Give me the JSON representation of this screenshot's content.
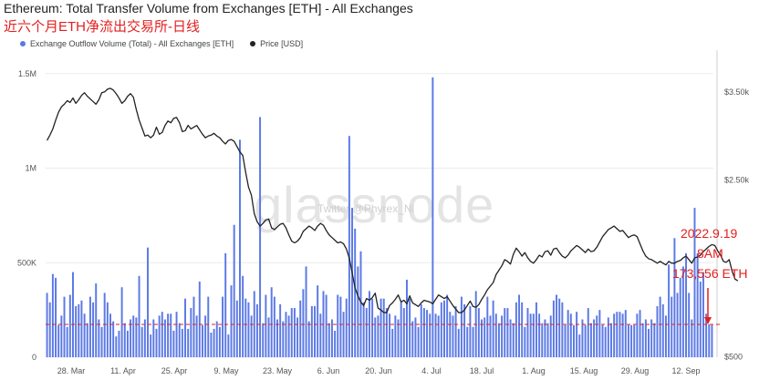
{
  "title": "Ethereum: Total Transfer Volume from Exchanges [ETH] - All Exchanges",
  "subtitle": "近六个月ETH净流出交易所-日线",
  "legend": {
    "series1": "Exchange Outflow Volume (Total) - All Exchanges [ETH]",
    "series2": "Price [USD]"
  },
  "watermark": "glassnode",
  "watermark_handle": "Twitter @Phyrex_Ni",
  "annotation": {
    "date": "2022.9.19",
    "time": "8AM",
    "value": "173,556 ETH"
  },
  "colors": {
    "bars": "#5b79e6",
    "price": "#222222",
    "annotation": "#e41e1e"
  },
  "chart_data": {
    "type": "bar",
    "x_axis": {
      "ticks": [
        "28. Mar",
        "11. Apr",
        "25. Apr",
        "9. May",
        "23. May",
        "6. Jun",
        "20. Jun",
        "4. Jul",
        "18. Jul",
        "1. Aug",
        "15. Aug",
        "29. Aug",
        "12. Sep"
      ]
    },
    "y_left": {
      "ticks": [
        "0",
        "500K",
        "1M",
        "1.5M"
      ],
      "range": [
        0,
        1600000
      ]
    },
    "y_right": {
      "ticks": [
        "$500",
        "$2.50k",
        "$3.50k"
      ]
    },
    "reference_line": {
      "value": 173556,
      "style": "dashed",
      "color": "#e41e1e"
    },
    "series": [
      {
        "name": "Exchange Outflow Volume (Total) - All Exchanges [ETH]",
        "type": "bar",
        "axis": "left",
        "values": [
          340000,
          290000,
          440000,
          420000,
          170000,
          220000,
          320000,
          160000,
          330000,
          450000,
          270000,
          280000,
          300000,
          230000,
          180000,
          320000,
          290000,
          390000,
          200000,
          160000,
          340000,
          290000,
          230000,
          190000,
          110000,
          140000,
          370000,
          180000,
          140000,
          200000,
          220000,
          210000,
          430000,
          160000,
          200000,
          580000,
          120000,
          200000,
          150000,
          220000,
          240000,
          200000,
          230000,
          230000,
          140000,
          240000,
          180000,
          150000,
          310000,
          150000,
          260000,
          320000,
          220000,
          400000,
          170000,
          220000,
          320000,
          130000,
          150000,
          190000,
          160000,
          320000,
          550000,
          120000,
          380000,
          700000,
          300000,
          1150000,
          430000,
          310000,
          290000,
          220000,
          350000,
          280000,
          1270000,
          180000,
          330000,
          210000,
          370000,
          320000,
          200000,
          280000,
          190000,
          240000,
          220000,
          260000,
          260000,
          210000,
          300000,
          360000,
          480000,
          190000,
          270000,
          270000,
          380000,
          230000,
          350000,
          330000,
          180000,
          200000,
          140000,
          330000,
          320000,
          240000,
          310000,
          1170000,
          790000,
          680000,
          480000,
          560000,
          290000,
          260000,
          350000,
          310000,
          210000,
          220000,
          310000,
          310000,
          260000,
          230000,
          150000,
          220000,
          200000,
          290000,
          260000,
          410000,
          310000,
          190000,
          210000,
          160000,
          280000,
          260000,
          250000,
          230000,
          1480000,
          230000,
          220000,
          290000,
          300000,
          330000,
          240000,
          220000,
          270000,
          150000,
          320000,
          280000,
          160000,
          270000,
          160000,
          350000,
          260000,
          200000,
          210000,
          320000,
          220000,
          300000,
          230000,
          180000,
          220000,
          260000,
          260000,
          200000,
          180000,
          290000,
          330000,
          290000,
          160000,
          260000,
          230000,
          230000,
          290000,
          230000,
          180000,
          200000,
          180000,
          220000,
          300000,
          330000,
          310000,
          290000,
          170000,
          250000,
          230000,
          170000,
          240000,
          120000,
          200000,
          170000,
          260000,
          180000,
          200000,
          220000,
          250000,
          170000,
          160000,
          210000,
          180000,
          230000,
          240000,
          240000,
          230000,
          250000,
          170000,
          170000,
          170000,
          230000,
          250000,
          180000,
          200000,
          150000,
          200000,
          180000,
          270000,
          320000,
          280000,
          220000,
          490000,
          320000,
          630000,
          340000,
          420000,
          480000,
          550000,
          340000,
          200000,
          790000,
          550000,
          400000,
          450000,
          230000,
          173556,
          170000
        ]
      },
      {
        "name": "Price [USD]",
        "type": "line",
        "axis": "right",
        "values": [
          2950,
          3010,
          3080,
          3180,
          3270,
          3330,
          3360,
          3400,
          3380,
          3430,
          3370,
          3410,
          3460,
          3490,
          3450,
          3420,
          3390,
          3360,
          3410,
          3490,
          3500,
          3530,
          3540,
          3520,
          3480,
          3430,
          3370,
          3400,
          3450,
          3480,
          3440,
          3300,
          3180,
          3090,
          3000,
          3010,
          2980,
          3010,
          3100,
          3020,
          3040,
          3120,
          3170,
          3150,
          3200,
          3210,
          3150,
          3050,
          3060,
          3120,
          3080,
          3100,
          3120,
          3070,
          3020,
          2980,
          3000,
          3010,
          3030,
          3000,
          2980,
          2940,
          2910,
          2950,
          2960,
          2940,
          2880,
          2820,
          2780,
          2590,
          2420,
          2330,
          2120,
          2030,
          1980,
          2010,
          2050,
          2060,
          1960,
          1940,
          1970,
          2000,
          2010,
          1960,
          1880,
          1810,
          1790,
          1810,
          1850,
          1920,
          1950,
          1980,
          1960,
          1930,
          1980,
          2010,
          1990,
          1930,
          1880,
          1850,
          1820,
          1790,
          1800,
          1780,
          1720,
          1620,
          1450,
          1280,
          1190,
          1120,
          1080,
          1160,
          1140,
          1170,
          1220,
          1050,
          1030,
          1000,
          1000,
          1080,
          1110,
          1150,
          1200,
          1120,
          1140,
          1100,
          1190,
          1110,
          1090,
          1070,
          1110,
          1140,
          1130,
          1120,
          1100,
          1150,
          1200,
          1180,
          1160,
          1180,
          1130,
          1080,
          1040,
          1000,
          1000,
          1030,
          1080,
          1130,
          1070,
          1060,
          1090,
          1150,
          1200,
          1260,
          1300,
          1340,
          1430,
          1480,
          1530,
          1600,
          1580,
          1550,
          1660,
          1730,
          1690,
          1640,
          1680,
          1620,
          1580,
          1560,
          1600,
          1650,
          1630,
          1690,
          1700,
          1650,
          1720,
          1730,
          1680,
          1640,
          1620,
          1650,
          1700,
          1730,
          1760,
          1740,
          1710,
          1680,
          1720,
          1690,
          1700,
          1740,
          1800,
          1860,
          1900,
          1940,
          1960,
          1980,
          1950,
          1920,
          1930,
          1890,
          1850,
          1870,
          1880,
          1860,
          1780,
          1700,
          1640,
          1610,
          1600,
          1580,
          1560,
          1580,
          1560,
          1540,
          1580,
          1560,
          1560,
          1580,
          1590,
          1620,
          1640,
          1600,
          1560,
          1620,
          1630,
          1650,
          1690,
          1720,
          1750,
          1770,
          1760,
          1700,
          1650,
          1580,
          1570,
          1600,
          1470,
          1380,
          1360
        ]
      }
    ]
  }
}
